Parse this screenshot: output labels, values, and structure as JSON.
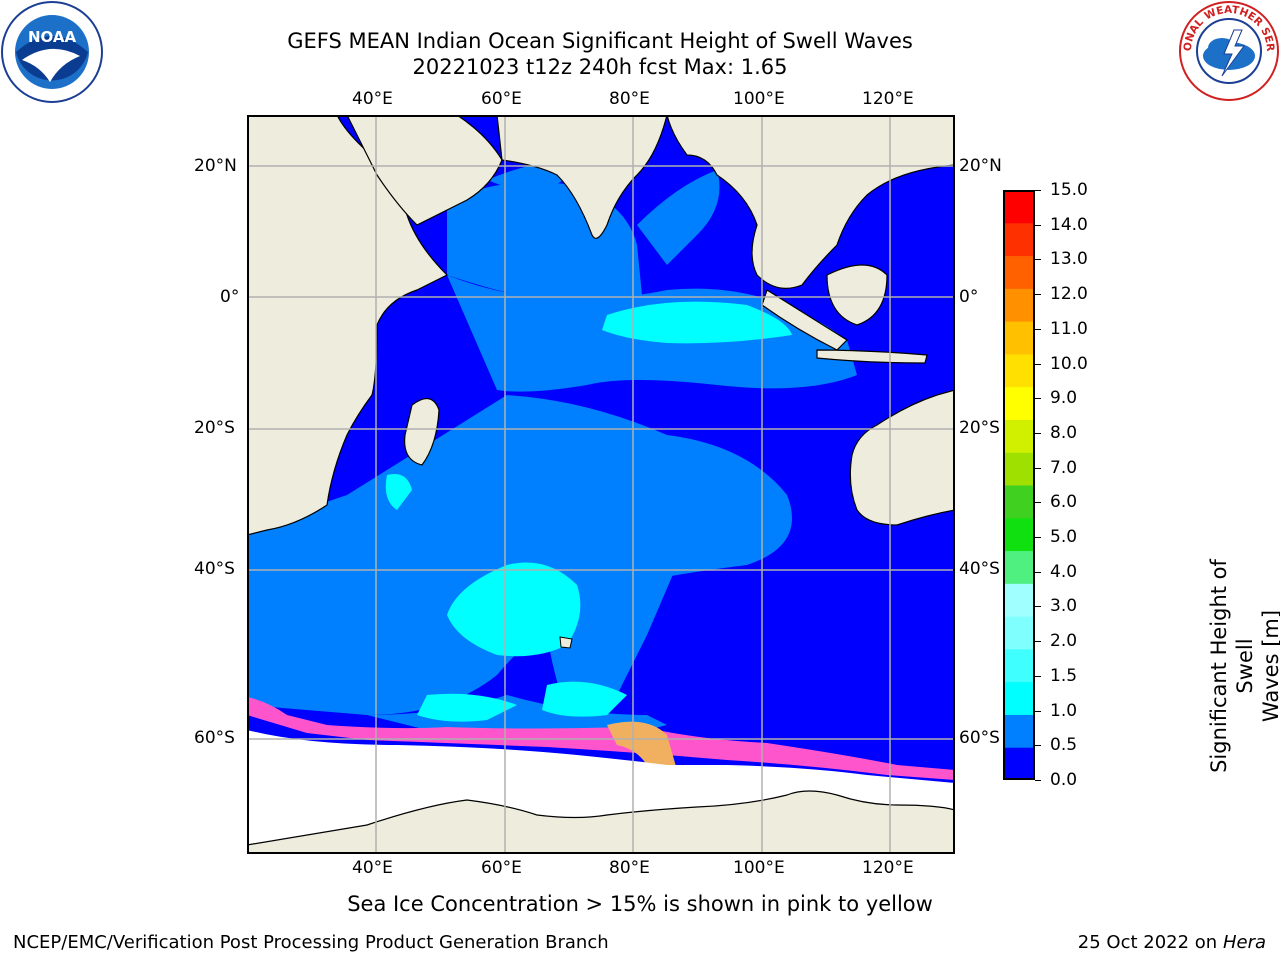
{
  "title": {
    "line1": "GEFS MEAN Indian Ocean Significant Height of Swell Waves",
    "line2": "20221023 t12z 240h fcst   Max: 1.65"
  },
  "map": {
    "lon_labels": [
      "40°E",
      "60°E",
      "80°E",
      "100°E",
      "120°E"
    ],
    "lat_labels": [
      "20°N",
      "0°",
      "20°S",
      "40°S",
      "60°S"
    ],
    "region": "Indian Ocean",
    "colors": {
      "land": "#eeecdc",
      "ice": "#ffffff",
      "grid": "#b0b0b0"
    }
  },
  "colorbar": {
    "label_line1": "Significant Height of Swell",
    "label_line2": "Waves [m]",
    "ticks": [
      "0.0",
      "0.5",
      "1.0",
      "1.5",
      "2.0",
      "3.0",
      "4.0",
      "5.0",
      "6.0",
      "7.0",
      "8.0",
      "9.0",
      "10.0",
      "11.0",
      "12.0",
      "13.0",
      "14.0",
      "15.0"
    ],
    "colors": [
      "#0000ff",
      "#0080ff",
      "#00ffff",
      "#40ffff",
      "#80ffff",
      "#a0ffff",
      "#50f080",
      "#10e010",
      "#40d020",
      "#a0e000",
      "#d0f000",
      "#ffff00",
      "#ffe000",
      "#ffc000",
      "#ff9000",
      "#ff6000",
      "#ff3000",
      "#ff0000"
    ]
  },
  "annotation": "Sea Ice Concentration > 15% is shown in pink to yellow",
  "footer": {
    "left": "NCEP/EMC/Verification Post Processing Product Generation Branch",
    "right_date": "25 Oct 2022 on ",
    "right_machine": "Hera"
  },
  "logos": {
    "left": "NOAA",
    "right": "NATIONAL WEATHER SERVICE"
  }
}
